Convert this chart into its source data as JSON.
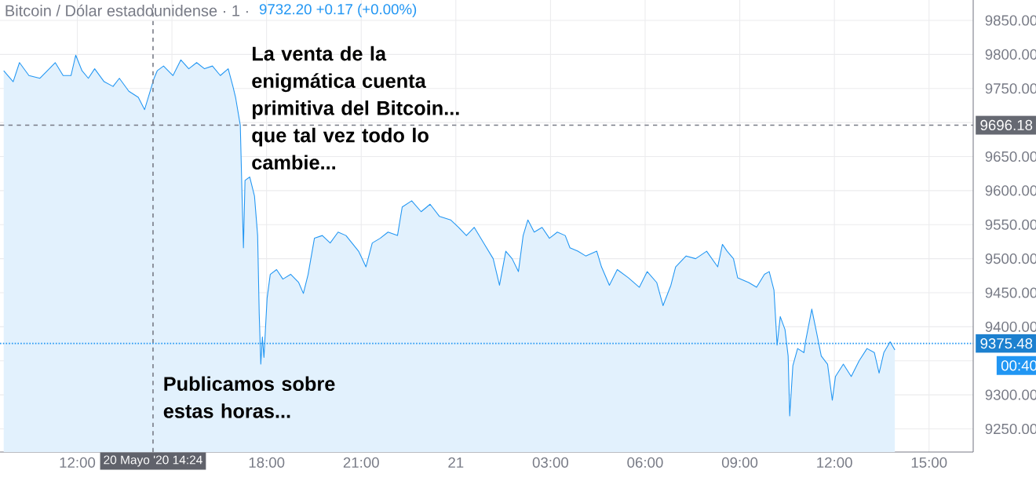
{
  "chart_data": {
    "type": "area",
    "title": "Bitcoin / Dólar estadounidense · 1 ·",
    "subtitle": "9732.20 +0.17 (+0.00%)",
    "x": [
      "2020-05-20T09:40",
      "2020-05-20T09:58",
      "2020-05-20T10:10",
      "2020-05-20T10:28",
      "2020-05-20T10:49",
      "2020-05-20T11:03",
      "2020-05-20T11:18",
      "2020-05-20T11:33",
      "2020-05-20T11:48",
      "2020-05-20T11:57",
      "2020-05-20T12:09",
      "2020-05-20T12:21",
      "2020-05-20T12:33",
      "2020-05-20T12:51",
      "2020-05-20T13:08",
      "2020-05-20T13:20",
      "2020-05-20T13:38",
      "2020-05-20T13:56",
      "2020-05-20T14:08",
      "2020-05-20T14:17",
      "2020-05-20T14:26",
      "2020-05-20T14:32",
      "2020-05-20T14:44",
      "2020-05-20T15:02",
      "2020-05-20T15:17",
      "2020-05-20T15:32",
      "2020-05-20T15:47",
      "2020-05-20T16:02",
      "2020-05-20T16:17",
      "2020-05-20T16:32",
      "2020-05-20T16:47",
      "2020-05-20T16:56",
      "2020-05-20T17:01",
      "2020-05-20T17:10",
      "2020-05-20T17:13",
      "2020-05-20T17:16",
      "2020-05-20T17:19",
      "2020-05-20T17:28",
      "2020-05-20T17:37",
      "2020-05-20T17:43",
      "2020-05-20T17:46",
      "2020-05-20T17:49",
      "2020-05-20T17:52",
      "2020-05-20T17:55",
      "2020-05-20T18:01",
      "2020-05-20T18:07",
      "2020-05-20T18:19",
      "2020-05-20T18:31",
      "2020-05-20T18:46",
      "2020-05-20T19:01",
      "2020-05-20T19:10",
      "2020-05-20T19:19",
      "2020-05-20T19:31",
      "2020-05-20T19:46",
      "2020-05-20T20:01",
      "2020-05-20T20:16",
      "2020-05-20T20:31",
      "2020-05-20T20:55",
      "2020-05-20T21:09",
      "2020-05-20T21:21",
      "2020-05-20T21:36",
      "2020-05-20T21:51",
      "2020-05-20T22:09",
      "2020-05-20T22:18",
      "2020-05-20T22:36",
      "2020-05-20T22:54",
      "2020-05-20T23:11",
      "2020-05-20T23:29",
      "2020-05-20T23:50",
      "2020-05-21T00:05",
      "2020-05-21T00:20",
      "2020-05-21T00:35",
      "2020-05-21T00:53",
      "2020-05-21T01:11",
      "2020-05-21T01:23",
      "2020-05-21T01:35",
      "2020-05-21T01:47",
      "2020-05-21T01:59",
      "2020-05-21T02:08",
      "2020-05-21T02:17",
      "2020-05-21T02:29",
      "2020-05-21T02:44",
      "2020-05-21T02:58",
      "2020-05-21T03:13",
      "2020-05-21T03:28",
      "2020-05-21T03:37",
      "2020-05-21T03:52",
      "2020-05-21T04:07",
      "2020-05-21T04:28",
      "2020-05-21T04:37",
      "2020-05-21T04:52",
      "2020-05-21T05:07",
      "2020-05-21T05:28",
      "2020-05-21T05:49",
      "2020-05-21T06:04",
      "2020-05-21T06:22",
      "2020-05-21T06:34",
      "2020-05-21T06:49",
      "2020-05-21T06:58",
      "2020-05-21T07:18",
      "2020-05-21T07:36",
      "2020-05-21T07:57",
      "2020-05-21T08:18",
      "2020-05-21T08:27",
      "2020-05-21T08:36",
      "2020-05-21T08:48",
      "2020-05-21T08:56",
      "2020-05-21T09:17",
      "2020-05-21T09:32",
      "2020-05-21T09:47",
      "2020-05-21T09:56",
      "2020-05-21T10:05",
      "2020-05-21T10:11",
      "2020-05-21T10:17",
      "2020-05-21T10:26",
      "2020-05-21T10:32",
      "2020-05-21T10:35",
      "2020-05-21T10:41",
      "2020-05-21T10:50",
      "2020-05-21T11:02",
      "2020-05-21T11:05",
      "2020-05-21T11:17",
      "2020-05-21T11:26",
      "2020-05-21T11:35",
      "2020-05-21T11:47",
      "2020-05-21T11:56",
      "2020-05-21T12:02",
      "2020-05-21T12:17",
      "2020-05-21T12:32",
      "2020-05-21T12:47",
      "2020-05-21T13:02",
      "2020-05-21T13:16",
      "2020-05-21T13:25",
      "2020-05-21T13:34",
      "2020-05-21T13:46",
      "2020-05-21T13:55"
    ],
    "series": [
      {
        "color": "#2196f3",
        "values": [
          9776,
          9760,
          9788,
          9769,
          9765,
          9776,
          9788,
          9769,
          9769,
          9799,
          9776,
          9765,
          9779,
          9760,
          9753,
          9765,
          9746,
          9737,
          9719,
          9742,
          9765,
          9776,
          9783,
          9769,
          9792,
          9779,
          9788,
          9779,
          9783,
          9769,
          9779,
          9753,
          9737,
          9696,
          9603,
          9516,
          9615,
          9620,
          9592,
          9534,
          9419,
          9345,
          9385,
          9355,
          9442,
          9477,
          9484,
          9470,
          9477,
          9465,
          9449,
          9477,
          9530,
          9534,
          9523,
          9539,
          9534,
          9511,
          9488,
          9523,
          9530,
          9539,
          9534,
          9576,
          9585,
          9569,
          9580,
          9562,
          9557,
          9546,
          9534,
          9546,
          9523,
          9500,
          9461,
          9511,
          9500,
          9481,
          9534,
          9557,
          9539,
          9546,
          9530,
          9539,
          9534,
          9516,
          9511,
          9504,
          9511,
          9488,
          9461,
          9484,
          9472,
          9458,
          9481,
          9465,
          9431,
          9461,
          9488,
          9504,
          9500,
          9511,
          9488,
          9521,
          9511,
          9500,
          9472,
          9465,
          9458,
          9477,
          9481,
          9454,
          9373,
          9415,
          9396,
          9357,
          9269,
          9343,
          9368,
          9362,
          9378,
          9426,
          9392,
          9357,
          9345,
          9292,
          9327,
          9345,
          9327,
          9350,
          9368,
          9362,
          9332,
          9362,
          9378,
          9366
        ]
      }
    ],
    "xlim": [
      "2020-05-20T09:33",
      "2020-05-21T16:24"
    ],
    "ylim": [
      9216,
      9880
    ],
    "xticks": [
      {
        "value": "2020-05-20T12:00",
        "label": "12:00"
      },
      {
        "value": "2020-05-20T15:00",
        "label": null
      },
      {
        "value": "2020-05-20T18:00",
        "label": "18:00"
      },
      {
        "value": "2020-05-20T21:00",
        "label": "21:00"
      },
      {
        "value": "2020-05-21T00:00",
        "label": "21"
      },
      {
        "value": "2020-05-21T03:00",
        "label": "03:00"
      },
      {
        "value": "2020-05-21T06:00",
        "label": "06:00"
      },
      {
        "value": "2020-05-21T09:00",
        "label": "09:00"
      },
      {
        "value": "2020-05-21T12:00",
        "label": "12:00"
      },
      {
        "value": "2020-05-21T15:00",
        "label": "15:00"
      }
    ],
    "yticks": [
      {
        "value": 9250,
        "label": "9250.00"
      },
      {
        "value": 9300,
        "label": "9300.00"
      },
      {
        "value": 9350,
        "label": null
      },
      {
        "value": 9400,
        "label": "9400.00"
      },
      {
        "value": 9450,
        "label": "9450.00"
      },
      {
        "value": 9500,
        "label": "9500.00"
      },
      {
        "value": 9550,
        "label": "9550.00"
      },
      {
        "value": 9600,
        "label": "9600.00"
      },
      {
        "value": 9650,
        "label": "9650.00"
      },
      {
        "value": 9700,
        "label": null
      },
      {
        "value": 9750,
        "label": "9750.00"
      },
      {
        "value": 9800,
        "label": "9800.00"
      },
      {
        "value": 9850,
        "label": "9850.00"
      }
    ],
    "grid": true,
    "ref_lines": [
      {
        "axis": "x",
        "value": "2020-05-20T14:24",
        "label": "20 Mayo '20  14:24",
        "color": "#787b86",
        "line_style": "dashed"
      },
      {
        "axis": "y",
        "value": 9696.18,
        "label": "9696.18",
        "color": "#787b86",
        "line_style": "dashed"
      },
      {
        "axis": "y",
        "value": 9375.48,
        "label": "9375.48",
        "color": "#2196f3",
        "line_style": "dotted"
      }
    ],
    "annotations": [
      "La venta de la enigmática cuenta primitiva del Bitcoin... que tal vez todo lo cambie...",
      "Publicamos sobre estas horas...",
      "00:40"
    ]
  }
}
